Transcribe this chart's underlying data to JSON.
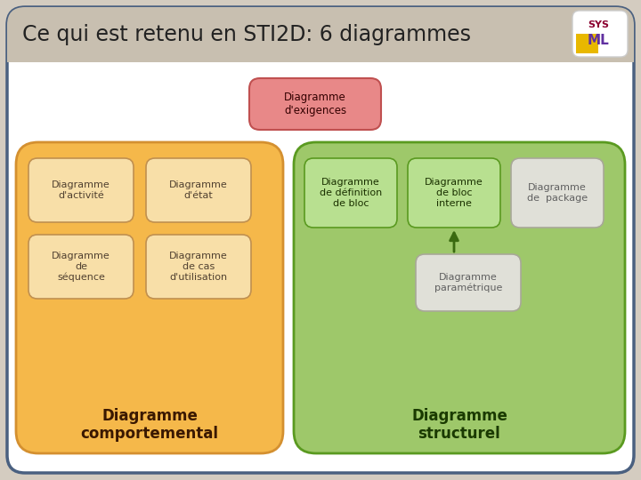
{
  "title": "Ce qui est retenu en STI2D: 6 diagrammes",
  "title_fontsize": 16,
  "title_color": "#222222",
  "bg_outer": "#d4ccc0",
  "bg_main": "#ffffff",
  "main_border_color": "#4a6080",
  "title_bar_color": "#c8bfb0",
  "orange_bg": "#f5b84a",
  "orange_border": "#d49030",
  "green_bg": "#9ec86a",
  "green_border": "#5a9a20",
  "pink_box_bg": "#e88888",
  "pink_box_border": "#c05050",
  "orange_small_bg": "#f8dfa8",
  "orange_small_border": "#c09050",
  "green_small_bg": "#b8e090",
  "green_small_border": "#5a9a20",
  "gray_small_bg": "#e0e0d8",
  "gray_small_border": "#a8a898",
  "arrow_color": "#3a6a10",
  "label_comportemental": "Diagramme\ncomportemental",
  "label_structurel": "Diagramme\nstructurel",
  "label_exigences": "Diagramme\nd'exigences",
  "boxes_orange": [
    {
      "label": "Diagramme\nd'activité"
    },
    {
      "label": "Diagramme\nd'état"
    },
    {
      "label": "Diagramme\nde\nséquence"
    },
    {
      "label": "Diagramme\nde cas\nd'utilisation"
    }
  ],
  "boxes_green": [
    {
      "label": "Diagramme\nde définition\nde bloc",
      "highlight": true
    },
    {
      "label": "Diagramme\nde bloc\ninterne",
      "highlight": true
    },
    {
      "label": "Diagramme\nde  package",
      "highlight": false
    }
  ],
  "box_parametrique": "Diagramme\nparamétrique"
}
